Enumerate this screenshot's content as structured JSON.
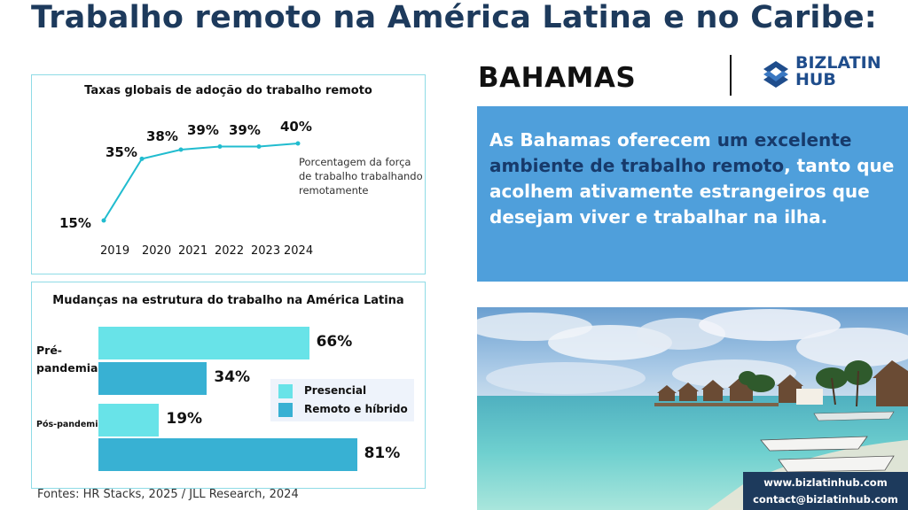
{
  "title": "Trabalho remoto na América Latina e no Caribe:",
  "country": "BAHAMAS",
  "logo": {
    "line1": "BIZLATIN",
    "line2": "HUB"
  },
  "description": {
    "p1": "As Bahamas oferecem ",
    "h1": "um excelente ambiente de trabalho remoto",
    "p2": ", tanto que acolhem ativamente estrangeiros que desejam viver e trabalhar na ilha."
  },
  "contact": {
    "website": "www.bizlatinhub.com",
    "email": "contact@bizlatinhub.com"
  },
  "sources": "Fontes: HR Stacks, 2025 / JLL Research, 2024",
  "colors": {
    "title": "#1d3a5c",
    "line": "#21bccf",
    "presencial": "#68e3e8",
    "remoto": "#38b1d3",
    "blue_panel": "#4f9fdb"
  },
  "chart_data": [
    {
      "type": "line",
      "title": "Taxas globais de adoção do trabalho remoto",
      "x": [
        "2019",
        "2020",
        "2021",
        "2022",
        "2023",
        "2024"
      ],
      "series": [
        {
          "values": [
            15,
            35,
            38,
            39,
            39,
            40
          ]
        }
      ],
      "value_labels": [
        "15%",
        "35%",
        "38%",
        "39%",
        "39%",
        "40%"
      ],
      "annotation": "Porcentagem da força de trabalho trabalhando remotamente"
    },
    {
      "type": "bar",
      "orientation": "horizontal",
      "title": "Mudanças na estrutura do trabalho na América Latina",
      "categories": [
        "Pré-pandemia",
        "Pós-pandemia"
      ],
      "series": [
        {
          "name": "Presencial",
          "values": [
            66,
            19
          ]
        },
        {
          "name": "Remoto e híbrido",
          "values": [
            34,
            81
          ]
        }
      ],
      "value_labels": [
        [
          "66%",
          "34%"
        ],
        [
          "19%",
          "81%"
        ]
      ],
      "legend": "right"
    }
  ]
}
